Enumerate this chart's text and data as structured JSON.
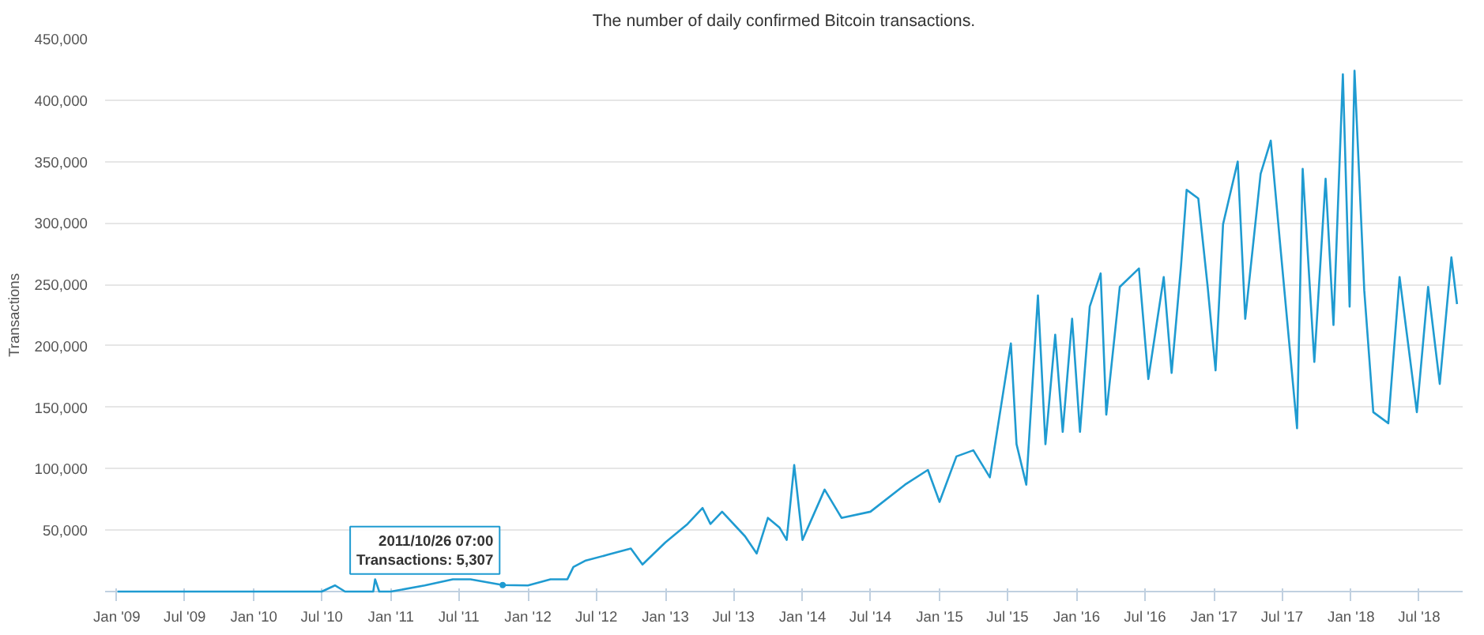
{
  "chart_data": {
    "type": "line",
    "title": "The number of daily confirmed Bitcoin transactions.",
    "ylabel": "Transactions",
    "x": [
      "2009-01-03",
      "2009-07-01",
      "2010-01-01",
      "2010-07-01",
      "2010-08-05",
      "2010-09-01",
      "2010-11-15",
      "2010-11-20",
      "2010-12-01",
      "2011-01-01",
      "2011-04-01",
      "2011-06-15",
      "2011-08-01",
      "2011-10-26",
      "2012-01-01",
      "2012-03-01",
      "2012-04-15",
      "2012-05-01",
      "2012-06-01",
      "2012-08-01",
      "2012-10-01",
      "2012-11-01",
      "2013-01-01",
      "2013-03-01",
      "2013-04-10",
      "2013-05-01",
      "2013-06-01",
      "2013-08-01",
      "2013-09-01",
      "2013-10-01",
      "2013-11-01",
      "2013-11-20",
      "2013-12-10",
      "2014-01-01",
      "2014-03-01",
      "2014-04-15",
      "2014-07-01",
      "2014-10-01",
      "2014-12-01",
      "2015-01-01",
      "2015-02-15",
      "2015-04-01",
      "2015-05-15",
      "2015-07-10",
      "2015-07-25",
      "2015-08-20",
      "2015-09-20",
      "2015-10-10",
      "2015-11-05",
      "2015-11-25",
      "2015-12-20",
      "2016-01-10",
      "2016-02-05",
      "2016-03-05",
      "2016-03-20",
      "2016-04-25",
      "2016-06-15",
      "2016-07-10",
      "2016-08-20",
      "2016-09-10",
      "2016-10-05",
      "2016-10-20",
      "2016-11-20",
      "2016-12-15",
      "2017-01-05",
      "2017-01-25",
      "2017-03-05",
      "2017-03-25",
      "2017-05-05",
      "2017-06-01",
      "2017-06-25",
      "2017-08-10",
      "2017-08-25",
      "2017-09-25",
      "2017-10-25",
      "2017-11-15",
      "2017-12-10",
      "2017-12-28",
      "2018-01-10",
      "2018-02-05",
      "2018-03-01",
      "2018-04-10",
      "2018-05-10",
      "2018-06-25",
      "2018-07-25",
      "2018-08-25",
      "2018-09-25",
      "2018-10-10"
    ],
    "series": [
      {
        "color": "#1f9bd1",
        "values": [
          0,
          0,
          0,
          0,
          5000,
          0,
          0,
          10000,
          0,
          0,
          5000,
          10000,
          10000,
          5307,
          5000,
          10000,
          10000,
          20000,
          25000,
          30000,
          35000,
          22000,
          40000,
          55000,
          68000,
          55000,
          65000,
          45000,
          31000,
          60000,
          52000,
          42000,
          103000,
          42000,
          83000,
          60000,
          65000,
          87000,
          99000,
          73000,
          110000,
          115000,
          93000,
          202000,
          120000,
          87000,
          241000,
          120000,
          209000,
          130000,
          222000,
          130000,
          232000,
          259000,
          144000,
          248000,
          263000,
          173000,
          256000,
          178000,
          265000,
          327000,
          320000,
          248000,
          180000,
          299000,
          350000,
          222000,
          340000,
          367000,
          286000,
          133000,
          344000,
          187000,
          336000,
          217000,
          421000,
          232000,
          424000,
          245000,
          146000,
          137000,
          256000,
          146000,
          248000,
          169000,
          272000,
          234000
        ]
      }
    ],
    "xlim": [
      "2008-12-01",
      "2018-10-25"
    ],
    "ylim": [
      0,
      450000
    ],
    "xticks": [
      {
        "value": "2009-01",
        "label": "Jan '09"
      },
      {
        "value": "2009-07",
        "label": "Jul '09"
      },
      {
        "value": "2010-01",
        "label": "Jan '10"
      },
      {
        "value": "2010-07",
        "label": "Jul '10"
      },
      {
        "value": "2011-01",
        "label": "Jan '11"
      },
      {
        "value": "2011-07",
        "label": "Jul '11"
      },
      {
        "value": "2012-01",
        "label": "Jan '12"
      },
      {
        "value": "2012-07",
        "label": "Jul '12"
      },
      {
        "value": "2013-01",
        "label": "Jan '13"
      },
      {
        "value": "2013-07",
        "label": "Jul '13"
      },
      {
        "value": "2014-01",
        "label": "Jan '14"
      },
      {
        "value": "2014-07",
        "label": "Jul '14"
      },
      {
        "value": "2015-01",
        "label": "Jan '15"
      },
      {
        "value": "2015-07",
        "label": "Jul '15"
      },
      {
        "value": "2016-01",
        "label": "Jan '16"
      },
      {
        "value": "2016-07",
        "label": "Jul '16"
      },
      {
        "value": "2017-01",
        "label": "Jan '17"
      },
      {
        "value": "2017-07",
        "label": "Jul '17"
      },
      {
        "value": "2018-01",
        "label": "Jan '18"
      },
      {
        "value": "2018-07",
        "label": "Jul '18"
      }
    ],
    "yticks": [
      {
        "value": 50000,
        "label": "50,000"
      },
      {
        "value": 100000,
        "label": "100,000"
      },
      {
        "value": 150000,
        "label": "150,000"
      },
      {
        "value": 200000,
        "label": "200,000"
      },
      {
        "value": 250000,
        "label": "250,000"
      },
      {
        "value": 300000,
        "label": "300,000"
      },
      {
        "value": 350000,
        "label": "350,000"
      },
      {
        "value": 400000,
        "label": "400,000"
      },
      {
        "value": 450000,
        "label": "450,000"
      }
    ],
    "grid": "y",
    "marker": "none",
    "line_style": "solid",
    "annotations": [
      {
        "text": "2011/10/26 07:00\nTransactions: 5,307",
        "x": "2011-10-26",
        "y": 5307
      }
    ]
  }
}
